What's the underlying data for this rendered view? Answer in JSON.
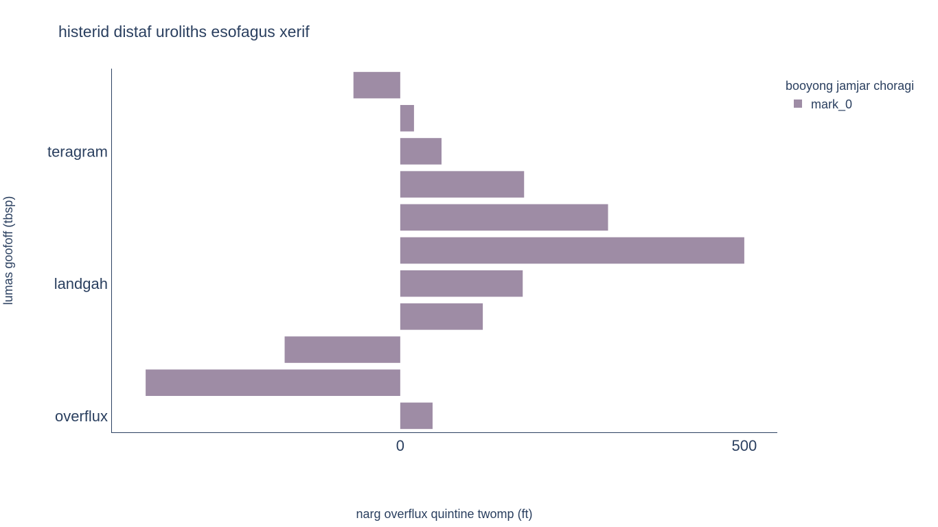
{
  "chart_data": {
    "type": "bar",
    "orientation": "horizontal",
    "title": "histerid distaf uroliths esofagus xerif",
    "xlabel": "narg overflux quintine twomp (ft)",
    "ylabel": "lumas goofoff (tbsp)",
    "legend": {
      "title": "booyong jamjar choragi",
      "placement": "top-right"
    },
    "xlim": [
      -420,
      548
    ],
    "x_ticks": [
      0,
      500
    ],
    "x_tick_labels": [
      "0",
      "500"
    ],
    "y_tick_labels": [
      {
        "label": "teragram",
        "index": 2
      },
      {
        "label": "landgah",
        "index": 6
      },
      {
        "label": "overflux",
        "index": 10
      }
    ],
    "color": "#9e8ca5",
    "series": [
      {
        "name": "mark_0",
        "values": [
          -68,
          20,
          60,
          180,
          302,
          500,
          178,
          120,
          -168,
          -370,
          47
        ]
      }
    ]
  }
}
